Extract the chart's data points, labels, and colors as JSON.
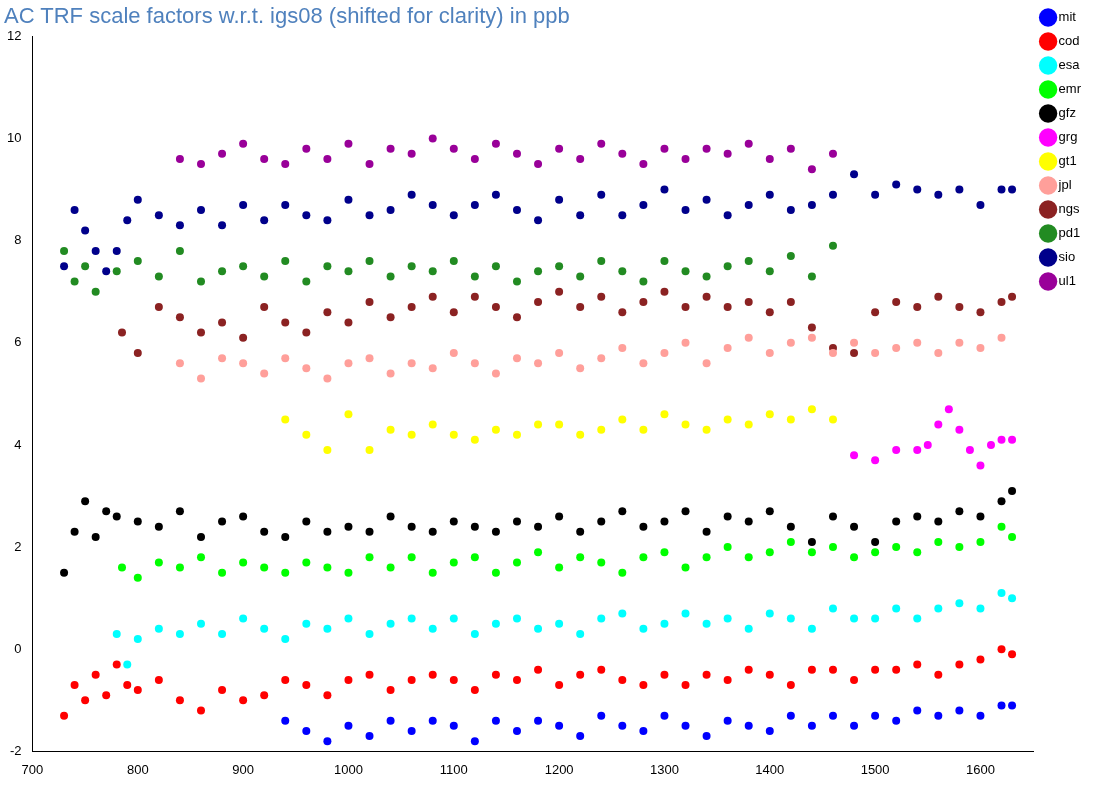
{
  "chart_data": {
    "type": "scatter",
    "title": "AC TRF scale factors w.r.t. igs08 (shifted for clarity) in ppb",
    "xlim": [
      700,
      1650
    ],
    "xticks": [
      700,
      800,
      900,
      1000,
      1100,
      1200,
      1300,
      1400,
      1500,
      1600
    ],
    "ylim": [
      -2,
      12
    ],
    "yticks": [
      -2,
      0,
      2,
      4,
      6,
      8,
      10,
      12
    ],
    "grid": false,
    "legend": "right",
    "marker": "circle",
    "series": [
      {
        "name": "mit",
        "color": "#0000ff",
        "x": [
          940,
          960,
          980,
          1000,
          1020,
          1040,
          1060,
          1080,
          1100,
          1120,
          1140,
          1160,
          1180,
          1200,
          1220,
          1240,
          1260,
          1280,
          1300,
          1320,
          1340,
          1360,
          1380,
          1400,
          1420,
          1440,
          1460,
          1480,
          1500,
          1520,
          1540,
          1560,
          1580,
          1600,
          1620,
          1630
        ],
        "values": [
          -1.4,
          -1.6,
          -1.8,
          -1.5,
          -1.7,
          -1.4,
          -1.6,
          -1.4,
          -1.5,
          -1.8,
          -1.4,
          -1.6,
          -1.4,
          -1.5,
          -1.7,
          -1.3,
          -1.5,
          -1.6,
          -1.3,
          -1.5,
          -1.7,
          -1.4,
          -1.5,
          -1.6,
          -1.3,
          -1.5,
          -1.3,
          -1.5,
          -1.3,
          -1.4,
          -1.2,
          -1.3,
          -1.2,
          -1.3,
          -1.1,
          -1.1
        ]
      },
      {
        "name": "cod",
        "color": "#ff0000",
        "x": [
          730,
          740,
          750,
          760,
          770,
          780,
          790,
          800,
          820,
          840,
          860,
          880,
          900,
          920,
          940,
          960,
          980,
          1000,
          1020,
          1040,
          1060,
          1080,
          1100,
          1120,
          1140,
          1160,
          1180,
          1200,
          1220,
          1240,
          1260,
          1280,
          1300,
          1320,
          1340,
          1360,
          1380,
          1400,
          1420,
          1440,
          1460,
          1480,
          1500,
          1520,
          1540,
          1560,
          1580,
          1600,
          1620,
          1630
        ],
        "values": [
          -1.3,
          -0.7,
          -1.0,
          -0.5,
          -0.9,
          -0.3,
          -0.7,
          -0.8,
          -0.6,
          -1.0,
          -1.2,
          -0.8,
          -1.0,
          -0.9,
          -0.6,
          -0.7,
          -0.9,
          -0.6,
          -0.5,
          -0.8,
          -0.6,
          -0.5,
          -0.6,
          -0.8,
          -0.5,
          -0.6,
          -0.4,
          -0.7,
          -0.5,
          -0.4,
          -0.6,
          -0.7,
          -0.5,
          -0.7,
          -0.5,
          -0.6,
          -0.4,
          -0.5,
          -0.7,
          -0.4,
          -0.4,
          -0.6,
          -0.4,
          -0.4,
          -0.3,
          -0.5,
          -0.3,
          -0.2,
          0.0,
          -0.1
        ]
      },
      {
        "name": "esa",
        "color": "#00ffff",
        "x": [
          780,
          790,
          800,
          820,
          840,
          860,
          880,
          900,
          920,
          940,
          960,
          980,
          1000,
          1020,
          1040,
          1060,
          1080,
          1100,
          1120,
          1140,
          1160,
          1180,
          1200,
          1220,
          1240,
          1260,
          1280,
          1300,
          1320,
          1340,
          1360,
          1380,
          1400,
          1420,
          1440,
          1460,
          1480,
          1500,
          1520,
          1540,
          1560,
          1580,
          1600,
          1620,
          1630
        ],
        "values": [
          0.3,
          -0.3,
          0.2,
          0.4,
          0.3,
          0.5,
          0.3,
          0.6,
          0.4,
          0.2,
          0.5,
          0.4,
          0.6,
          0.3,
          0.5,
          0.6,
          0.4,
          0.6,
          0.3,
          0.5,
          0.6,
          0.4,
          0.5,
          0.3,
          0.6,
          0.7,
          0.4,
          0.5,
          0.7,
          0.5,
          0.6,
          0.4,
          0.7,
          0.6,
          0.4,
          0.8,
          0.6,
          0.6,
          0.8,
          0.6,
          0.8,
          0.9,
          0.8,
          1.1,
          1.0
        ]
      },
      {
        "name": "emr",
        "color": "#00ff00",
        "x": [
          785,
          800,
          820,
          840,
          860,
          880,
          900,
          920,
          940,
          960,
          980,
          1000,
          1020,
          1040,
          1060,
          1080,
          1100,
          1120,
          1140,
          1160,
          1180,
          1200,
          1220,
          1240,
          1260,
          1280,
          1300,
          1320,
          1340,
          1360,
          1380,
          1400,
          1420,
          1440,
          1460,
          1480,
          1500,
          1520,
          1540,
          1560,
          1580,
          1600,
          1620,
          1630
        ],
        "values": [
          1.6,
          1.4,
          1.7,
          1.6,
          1.8,
          1.5,
          1.7,
          1.6,
          1.5,
          1.7,
          1.6,
          1.5,
          1.8,
          1.6,
          1.8,
          1.5,
          1.7,
          1.8,
          1.5,
          1.7,
          1.9,
          1.6,
          1.8,
          1.7,
          1.5,
          1.8,
          1.9,
          1.6,
          1.8,
          2.0,
          1.8,
          1.9,
          2.1,
          1.9,
          2.0,
          1.8,
          1.9,
          2.0,
          1.9,
          2.1,
          2.0,
          2.1,
          2.4,
          2.2
        ]
      },
      {
        "name": "gfz",
        "color": "#000000",
        "x": [
          730,
          740,
          750,
          760,
          770,
          780,
          800,
          820,
          840,
          860,
          880,
          900,
          920,
          940,
          960,
          980,
          1000,
          1020,
          1040,
          1060,
          1080,
          1100,
          1120,
          1140,
          1160,
          1180,
          1200,
          1220,
          1240,
          1260,
          1280,
          1300,
          1320,
          1340,
          1360,
          1380,
          1400,
          1420,
          1440,
          1460,
          1480,
          1500,
          1520,
          1540,
          1560,
          1580,
          1600,
          1620,
          1630
        ],
        "values": [
          1.5,
          2.3,
          2.9,
          2.2,
          2.7,
          2.6,
          2.5,
          2.4,
          2.7,
          2.2,
          2.5,
          2.6,
          2.3,
          2.2,
          2.5,
          2.3,
          2.4,
          2.3,
          2.6,
          2.4,
          2.3,
          2.5,
          2.4,
          2.3,
          2.5,
          2.4,
          2.6,
          2.3,
          2.5,
          2.7,
          2.4,
          2.5,
          2.7,
          2.3,
          2.6,
          2.5,
          2.7,
          2.4,
          2.1,
          2.6,
          2.4,
          2.1,
          2.5,
          2.6,
          2.5,
          2.7,
          2.6,
          2.9,
          3.1
        ]
      },
      {
        "name": "grg",
        "color": "#ff00ff",
        "x": [
          1480,
          1500,
          1520,
          1540,
          1550,
          1560,
          1570,
          1580,
          1590,
          1600,
          1610,
          1620,
          1630
        ],
        "values": [
          3.8,
          3.7,
          3.9,
          3.9,
          4.0,
          4.4,
          4.7,
          4.3,
          3.9,
          3.6,
          4.0,
          4.1,
          4.1
        ]
      },
      {
        "name": "gt1",
        "color": "#ffff00",
        "x": [
          940,
          960,
          980,
          1000,
          1020,
          1040,
          1060,
          1080,
          1100,
          1120,
          1140,
          1160,
          1180,
          1200,
          1220,
          1240,
          1260,
          1280,
          1300,
          1320,
          1340,
          1360,
          1380,
          1400,
          1420,
          1440,
          1460
        ],
        "values": [
          4.5,
          4.2,
          3.9,
          4.6,
          3.9,
          4.3,
          4.2,
          4.4,
          4.2,
          4.1,
          4.3,
          4.2,
          4.4,
          4.4,
          4.2,
          4.3,
          4.5,
          4.3,
          4.6,
          4.4,
          4.3,
          4.5,
          4.4,
          4.6,
          4.5,
          4.7,
          4.5
        ]
      },
      {
        "name": "jpl",
        "color": "#ff9f9a",
        "x": [
          840,
          860,
          880,
          900,
          920,
          940,
          960,
          980,
          1000,
          1020,
          1040,
          1060,
          1080,
          1100,
          1120,
          1140,
          1160,
          1180,
          1200,
          1220,
          1240,
          1260,
          1280,
          1300,
          1320,
          1340,
          1360,
          1380,
          1400,
          1420,
          1440,
          1460,
          1480,
          1500,
          1520,
          1540,
          1560,
          1580,
          1600,
          1620
        ],
        "values": [
          5.6,
          5.3,
          5.7,
          5.6,
          5.4,
          5.7,
          5.5,
          5.3,
          5.6,
          5.7,
          5.4,
          5.6,
          5.5,
          5.8,
          5.6,
          5.4,
          5.7,
          5.6,
          5.8,
          5.5,
          5.7,
          5.9,
          5.6,
          5.8,
          6.0,
          5.6,
          5.9,
          6.1,
          5.8,
          6.0,
          6.1,
          5.8,
          6.0,
          5.8,
          5.9,
          6.0,
          5.8,
          6.0,
          5.9,
          6.1
        ]
      },
      {
        "name": "ngs",
        "color": "#8b2222",
        "x": [
          785,
          800,
          820,
          840,
          860,
          880,
          900,
          920,
          940,
          960,
          980,
          1000,
          1020,
          1040,
          1060,
          1080,
          1100,
          1120,
          1140,
          1160,
          1180,
          1200,
          1220,
          1240,
          1260,
          1280,
          1300,
          1320,
          1340,
          1360,
          1380,
          1400,
          1420,
          1440,
          1460,
          1480,
          1500,
          1520,
          1540,
          1560,
          1580,
          1600,
          1620,
          1630
        ],
        "values": [
          6.2,
          5.8,
          6.7,
          6.5,
          6.2,
          6.4,
          6.1,
          6.7,
          6.4,
          6.2,
          6.6,
          6.4,
          6.8,
          6.5,
          6.7,
          6.9,
          6.6,
          6.9,
          6.7,
          6.5,
          6.8,
          7.0,
          6.7,
          6.9,
          6.6,
          6.8,
          7.0,
          6.7,
          6.9,
          6.7,
          6.8,
          6.6,
          6.8,
          6.3,
          5.9,
          5.8,
          6.6,
          6.8,
          6.7,
          6.9,
          6.7,
          6.6,
          6.8,
          6.9
        ]
      },
      {
        "name": "pd1",
        "color": "#228b22",
        "x": [
          730,
          740,
          750,
          760,
          780,
          800,
          820,
          840,
          860,
          880,
          900,
          920,
          940,
          960,
          980,
          1000,
          1020,
          1040,
          1060,
          1080,
          1100,
          1120,
          1140,
          1160,
          1180,
          1200,
          1220,
          1240,
          1260,
          1280,
          1300,
          1320,
          1340,
          1360,
          1380,
          1400,
          1420,
          1440,
          1460
        ],
        "values": [
          7.8,
          7.2,
          7.5,
          7.0,
          7.4,
          7.6,
          7.3,
          7.8,
          7.2,
          7.4,
          7.5,
          7.3,
          7.6,
          7.2,
          7.5,
          7.4,
          7.6,
          7.3,
          7.5,
          7.4,
          7.6,
          7.3,
          7.5,
          7.2,
          7.4,
          7.5,
          7.3,
          7.6,
          7.4,
          7.2,
          7.6,
          7.4,
          7.3,
          7.5,
          7.6,
          7.4,
          7.7,
          7.3,
          7.9
        ]
      },
      {
        "name": "sio",
        "color": "#00008b",
        "x": [
          730,
          740,
          750,
          760,
          770,
          780,
          790,
          800,
          820,
          840,
          860,
          880,
          900,
          920,
          940,
          960,
          980,
          1000,
          1020,
          1040,
          1060,
          1080,
          1100,
          1120,
          1140,
          1160,
          1180,
          1200,
          1220,
          1240,
          1260,
          1280,
          1300,
          1320,
          1340,
          1360,
          1380,
          1400,
          1420,
          1440,
          1460,
          1480,
          1500,
          1520,
          1540,
          1560,
          1580,
          1600,
          1620,
          1630
        ],
        "values": [
          7.5,
          8.6,
          8.2,
          7.8,
          7.4,
          7.8,
          8.4,
          8.8,
          8.5,
          8.3,
          8.6,
          8.3,
          8.7,
          8.4,
          8.7,
          8.5,
          8.4,
          8.8,
          8.5,
          8.6,
          8.9,
          8.7,
          8.5,
          8.7,
          8.9,
          8.6,
          8.4,
          8.8,
          8.5,
          8.9,
          8.5,
          8.7,
          9.0,
          8.6,
          8.8,
          8.5,
          8.7,
          8.9,
          8.6,
          8.7,
          8.9,
          9.3,
          8.9,
          9.1,
          9.0,
          8.9,
          9.0,
          8.7,
          9.0,
          9.0
        ]
      },
      {
        "name": "ul1",
        "color": "#990099",
        "x": [
          840,
          860,
          880,
          900,
          920,
          940,
          960,
          980,
          1000,
          1020,
          1040,
          1060,
          1080,
          1100,
          1120,
          1140,
          1160,
          1180,
          1200,
          1220,
          1240,
          1260,
          1280,
          1300,
          1320,
          1340,
          1360,
          1380,
          1400,
          1420,
          1440,
          1460
        ],
        "values": [
          9.6,
          9.5,
          9.7,
          9.9,
          9.6,
          9.5,
          9.8,
          9.6,
          9.9,
          9.5,
          9.8,
          9.7,
          10.0,
          9.8,
          9.6,
          9.9,
          9.7,
          9.5,
          9.8,
          9.6,
          9.9,
          9.7,
          9.5,
          9.8,
          9.6,
          9.8,
          9.7,
          9.9,
          9.6,
          9.8,
          9.4,
          9.7
        ]
      }
    ]
  }
}
